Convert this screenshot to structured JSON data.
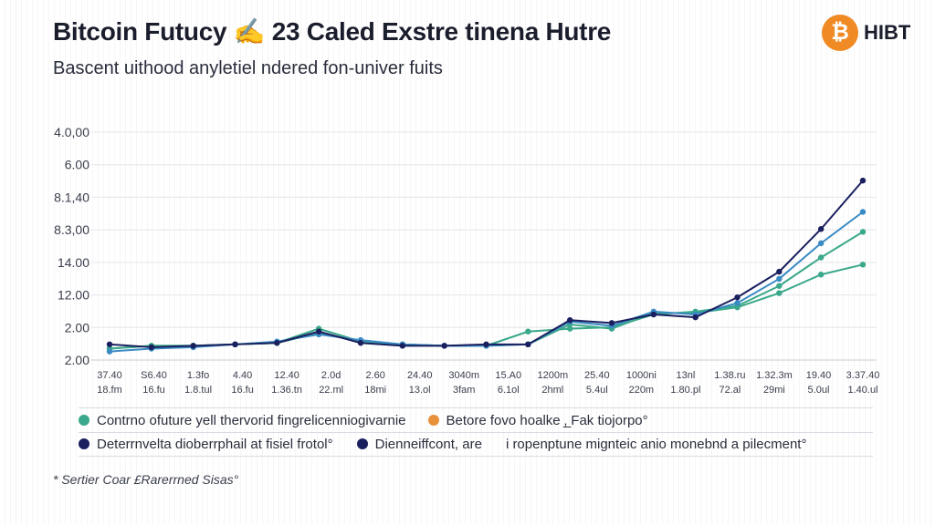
{
  "header": {
    "title": "Bitcoin Futucy ✍ 23 Caled Exstre tinena Hutre",
    "subtitle": "Bascent uithood anyletiel ndered fon-univer fuits",
    "brand_icon": "bitcoin-icon",
    "brand_text": "HIBT"
  },
  "colors": {
    "teal_green": "#3aa88a",
    "blue": "#3a8ac4",
    "navy": "#1a1f5e",
    "orange": "#e8903a",
    "grid": "#e3e5eb"
  },
  "legend": {
    "row1": [
      {
        "label": "Contrno ofuture yell thervorid fingrelicenniogivarnie",
        "color": "#3aa88a"
      },
      {
        "label": "Betore fovo hoalke ‚̲ Fak tiojorpo°",
        "color": "#e8903a"
      }
    ],
    "row2": [
      {
        "label": "Deterrnvelta dioberrphail at fisiel frotol°",
        "color": "#1a1f5e"
      },
      {
        "label": "Dienneiffcont, are",
        "color": "#1a1f5e"
      },
      {
        "label": "і ropenptune mignteic anio monebnd a pilecment°",
        "color": ""
      }
    ]
  },
  "source": "* Sertier Coar £Rarerrned Sisas°",
  "chart_data": {
    "type": "line",
    "title": "Bitcoin Futucy ✍ 23 Caled Exstre tinena Hutre",
    "xlabel": "",
    "ylabel": "",
    "y_tick_labels": [
      "2.00",
      "2.00",
      "12.00",
      "14.00",
      "8.3,00",
      "8.1,40",
      "6.00",
      "4.0,00"
    ],
    "x_tick_labels": [
      [
        "37.40",
        "18.fm"
      ],
      [
        "S6.40",
        "16.fu"
      ],
      [
        "1.3fo",
        "1.8.tul"
      ],
      [
        "4.40",
        "16.fu"
      ],
      [
        "12.40",
        "1.36.tn"
      ],
      [
        "2.0d",
        "22.ml"
      ],
      [
        "2.60",
        "18mi"
      ],
      [
        "24.40",
        "13.ol"
      ],
      [
        "3040m",
        "3fam"
      ],
      [
        "15.A0",
        "6.1ol"
      ],
      [
        "1200m",
        "2hml"
      ],
      [
        "25.40",
        "5.4ul"
      ],
      [
        "1000ni",
        "220m"
      ],
      [
        "13nl",
        "1.80.pl"
      ],
      [
        "1.38.ru",
        "72.al"
      ],
      [
        "1.32.3m",
        "29mi"
      ],
      [
        "19.40",
        "5.0ul"
      ],
      [
        "3.37.40",
        "1.40.ul"
      ]
    ],
    "x_range": [
      0,
      18
    ],
    "ylim": [
      0,
      8
    ],
    "grid": true,
    "legend_position": "bottom",
    "series": [
      {
        "color": "#1a1f5e",
        "x": [
          0,
          1,
          2,
          3,
          4,
          5,
          6,
          7,
          8,
          9,
          10,
          11,
          12,
          13,
          14,
          15,
          16,
          17,
          18
        ],
        "y": [
          0.55,
          0.45,
          0.5,
          0.55,
          0.6,
          1.0,
          0.6,
          0.5,
          0.5,
          0.55,
          0.55,
          1.4,
          1.3,
          1.6,
          1.5,
          2.2,
          3.1,
          4.6,
          6.3
        ]
      },
      {
        "color": "#3a8ac4",
        "x": [
          0,
          1,
          2,
          3,
          4,
          5,
          6,
          7,
          8,
          9,
          10,
          11,
          12,
          13,
          14,
          15,
          16,
          17,
          18
        ],
        "y": [
          0.3,
          0.4,
          0.45,
          0.55,
          0.65,
          0.9,
          0.7,
          0.55,
          0.5,
          0.5,
          0.55,
          1.35,
          1.2,
          1.7,
          1.6,
          2.0,
          2.85,
          4.1,
          5.2
        ]
      },
      {
        "color": "#3aa88a",
        "x": [
          0,
          1,
          2,
          3,
          4,
          5,
          6,
          7,
          8,
          9,
          10,
          11,
          12,
          13,
          14,
          15,
          16,
          17,
          18
        ],
        "y": [
          0.4,
          0.5,
          0.5,
          0.55,
          0.6,
          1.1,
          0.65,
          0.55,
          0.5,
          0.5,
          1.0,
          1.1,
          1.15,
          1.6,
          1.7,
          1.9,
          2.6,
          3.6,
          4.5
        ]
      },
      {
        "color": "#3aa88a",
        "x": [
          0,
          1,
          2,
          3,
          4,
          5,
          6,
          7,
          8,
          9,
          10,
          11,
          12,
          13,
          14,
          15,
          16,
          17,
          18
        ],
        "y": [
          0.4,
          0.5,
          0.5,
          0.55,
          0.6,
          0.95,
          0.65,
          0.55,
          0.5,
          0.5,
          0.55,
          1.25,
          1.1,
          1.65,
          1.65,
          1.85,
          2.35,
          3.0,
          3.35
        ]
      }
    ]
  }
}
